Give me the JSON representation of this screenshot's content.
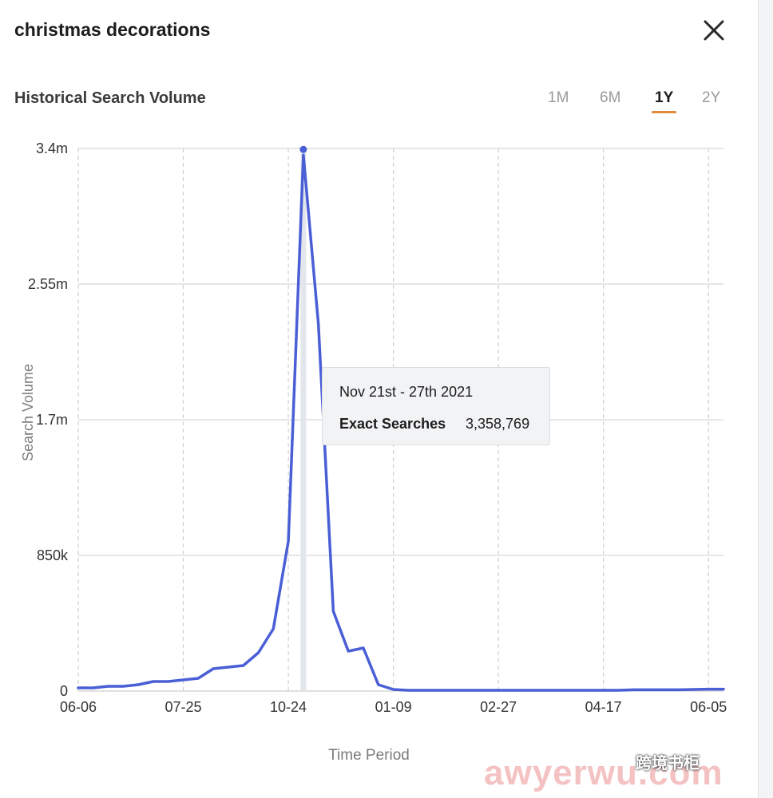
{
  "header": {
    "title": "christmas decorations",
    "close_icon": "close-icon"
  },
  "section": {
    "subtitle": "Historical Search Volume"
  },
  "ranges": {
    "tabs": [
      {
        "label": "1M",
        "active": false
      },
      {
        "label": "6M",
        "active": false
      },
      {
        "label": "1Y",
        "active": true
      },
      {
        "label": "2Y",
        "active": false
      }
    ],
    "accent_color": "#e08a3c"
  },
  "tooltip": {
    "date": "Nov 21st - 27th 2021",
    "label": "Exact Searches",
    "value": "3,358,769"
  },
  "watermark": {
    "text": "awyerwu.com",
    "badge": "跨境书柜"
  },
  "chart_data": {
    "type": "line",
    "xlabel": "Time Period",
    "ylabel": "Search Volume",
    "ylim": [
      0,
      3400000
    ],
    "yticks": [
      {
        "value": 0,
        "label": "0"
      },
      {
        "value": 850000,
        "label": "850k"
      },
      {
        "value": 1700000,
        "label": "1.7m"
      },
      {
        "value": 2550000,
        "label": "2.55m"
      },
      {
        "value": 3400000,
        "label": "3.4m"
      }
    ],
    "xticks": [
      {
        "index": 0,
        "label": "06-06"
      },
      {
        "index": 7,
        "label": "07-25"
      },
      {
        "index": 14,
        "label": "10-24"
      },
      {
        "index": 21,
        "label": "01-09"
      },
      {
        "index": 28,
        "label": "02-27"
      },
      {
        "index": 35,
        "label": "04-17"
      },
      {
        "index": 42,
        "label": "06-05"
      }
    ],
    "grid": true,
    "line_color": "#4a5fd6",
    "highlight_index": 15,
    "series": [
      {
        "values": [
          20000,
          20000,
          30000,
          30000,
          40000,
          60000,
          60000,
          70000,
          80000,
          140000,
          150000,
          160000,
          240000,
          390000,
          940000,
          3358769,
          2300000,
          500000,
          250000,
          270000,
          40000,
          10000,
          5000,
          5000,
          5000,
          5000,
          5000,
          5000,
          5000,
          5000,
          5000,
          5000,
          5000,
          5000,
          5000,
          5000,
          5000,
          8000,
          8000,
          8000,
          8000,
          10000,
          12000,
          12000
        ]
      }
    ]
  }
}
